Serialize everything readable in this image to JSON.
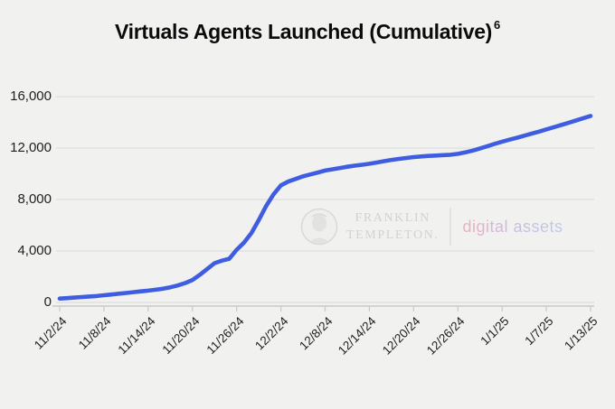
{
  "title": {
    "text": "Virtuals Agents Launched (Cumulative)",
    "superscript": "6"
  },
  "watermark": {
    "company_line1": "FRANKLIN",
    "company_line2": "TEMPLETON.",
    "brand": "digital assets",
    "logo_icon": "franklin-templeton-logo-icon"
  },
  "colors": {
    "background": "#f1f1f0",
    "line": "#3e5de0",
    "gridline": "#e3e3e2",
    "axis": "#c9c9c9",
    "tick_label": "#1e1e1e",
    "title_text": "#0b0b0b",
    "watermark_text": "#b9b9b9",
    "brand_gradient": [
      "#e87c95",
      "#b48bd6",
      "#8fb0e8"
    ]
  },
  "chart_data": {
    "type": "line",
    "title": "Virtuals Agents Launched (Cumulative)",
    "xlabel": "",
    "ylabel": "",
    "ylim": [
      0,
      16000
    ],
    "grid": "horizontal",
    "legend_position": "none",
    "y_ticks": {
      "values": [
        0,
        4000,
        8000,
        12000,
        16000
      ],
      "labels": [
        "0",
        "4,000",
        "8,000",
        "12,000",
        "16,000"
      ]
    },
    "x_tick_labels": [
      "11/2/24",
      "11/8/24",
      "11/14/24",
      "11/20/24",
      "11/26/24",
      "12/2/24",
      "12/8/24",
      "12/14/24",
      "12/20/24",
      "12/26/24",
      "1/1/25",
      "1/7/25",
      "1/13/25"
    ],
    "x_tick_step_days": 6,
    "x": [
      "11/2/24",
      "11/3/24",
      "11/4/24",
      "11/5/24",
      "11/6/24",
      "11/7/24",
      "11/8/24",
      "11/9/24",
      "11/10/24",
      "11/11/24",
      "11/12/24",
      "11/13/24",
      "11/14/24",
      "11/15/24",
      "11/16/24",
      "11/17/24",
      "11/18/24",
      "11/19/24",
      "11/20/24",
      "11/21/24",
      "11/22/24",
      "11/23/24",
      "11/24/24",
      "11/25/24",
      "11/26/24",
      "11/27/24",
      "11/28/24",
      "11/29/24",
      "11/30/24",
      "12/1/24",
      "12/2/24",
      "12/3/24",
      "12/4/24",
      "12/5/24",
      "12/6/24",
      "12/7/24",
      "12/8/24",
      "12/9/24",
      "12/10/24",
      "12/11/24",
      "12/12/24",
      "12/13/24",
      "12/14/24",
      "12/15/24",
      "12/16/24",
      "12/17/24",
      "12/18/24",
      "12/19/24",
      "12/20/24",
      "12/21/24",
      "12/22/24",
      "12/23/24",
      "12/24/24",
      "12/25/24",
      "12/26/24",
      "12/27/24",
      "12/28/24",
      "12/29/24",
      "12/30/24",
      "12/31/24",
      "1/1/25",
      "1/2/25",
      "1/3/25",
      "1/4/25",
      "1/5/25",
      "1/6/25",
      "1/7/25",
      "1/8/25",
      "1/9/25",
      "1/10/25",
      "1/11/25",
      "1/12/25",
      "1/13/25"
    ],
    "series": [
      {
        "name": "Virtuals agents launched (cumulative)",
        "color": "#3e5de0",
        "values": [
          300,
          340,
          380,
          420,
          460,
          500,
          560,
          620,
          680,
          740,
          800,
          860,
          920,
          990,
          1070,
          1180,
          1320,
          1500,
          1750,
          2150,
          2600,
          3050,
          3250,
          3400,
          4100,
          4650,
          5400,
          6400,
          7500,
          8400,
          9100,
          9400,
          9600,
          9800,
          9950,
          10100,
          10250,
          10350,
          10450,
          10550,
          10630,
          10700,
          10780,
          10880,
          10980,
          11080,
          11160,
          11230,
          11300,
          11350,
          11390,
          11420,
          11450,
          11480,
          11550,
          11660,
          11800,
          11970,
          12150,
          12330,
          12500,
          12650,
          12800,
          12960,
          13120,
          13280,
          13450,
          13620,
          13790,
          13960,
          14140,
          14320,
          14500
        ]
      }
    ]
  }
}
